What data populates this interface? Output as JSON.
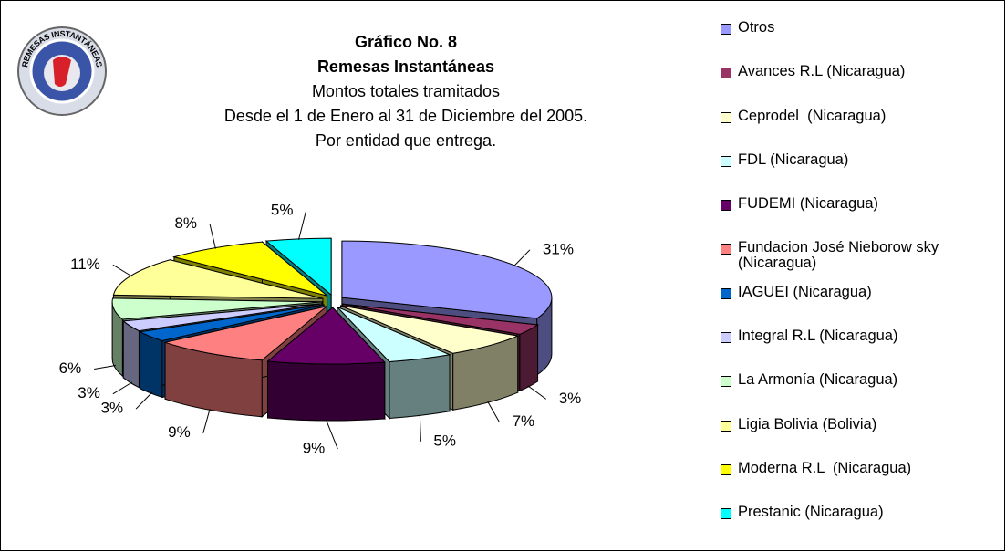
{
  "chart_data": {
    "type": "pie3d",
    "title": "Gráfico No. 8",
    "subtitle": "Remesas Instantáneas",
    "description": [
      "Montos totales tramitados",
      "Desde el 1 de Enero al 31 de Diciembre del 2005.",
      "Por entidad que entrega."
    ],
    "logo_text": "REMESAS INSTANTÁNEAS",
    "categories": [
      "Otros",
      "Avances R.L (Nicaragua)",
      "Ceprodel  (Nicaragua)",
      "FDL (Nicaragua)",
      "FUDEMI (Nicaragua)",
      "Fundacion José Nieborow sky (Nicaragua)",
      "IAGUEI (Nicaragua)",
      "Integral R.L (Nicaragua)",
      "La Armonía (Nicaragua)",
      "Ligia Bolivia (Bolivia)",
      "Moderna R.L  (Nicaragua)",
      "Prestanic (Nicaragua)"
    ],
    "values": [
      31,
      3,
      7,
      5,
      9,
      9,
      3,
      3,
      6,
      11,
      8,
      5
    ],
    "value_labels": [
      "31%",
      "3%",
      "7%",
      "5%",
      "9%",
      "9%",
      "3%",
      "3%",
      "6%",
      "11%",
      "8%",
      "5%"
    ],
    "colors": [
      "#9999ff",
      "#993366",
      "#ffffcc",
      "#ccffff",
      "#660066",
      "#ff8080",
      "#0066cc",
      "#ccccff",
      "#ccffcc",
      "#ffff99",
      "#ffff00",
      "#00ffff"
    ],
    "legend": "right"
  }
}
